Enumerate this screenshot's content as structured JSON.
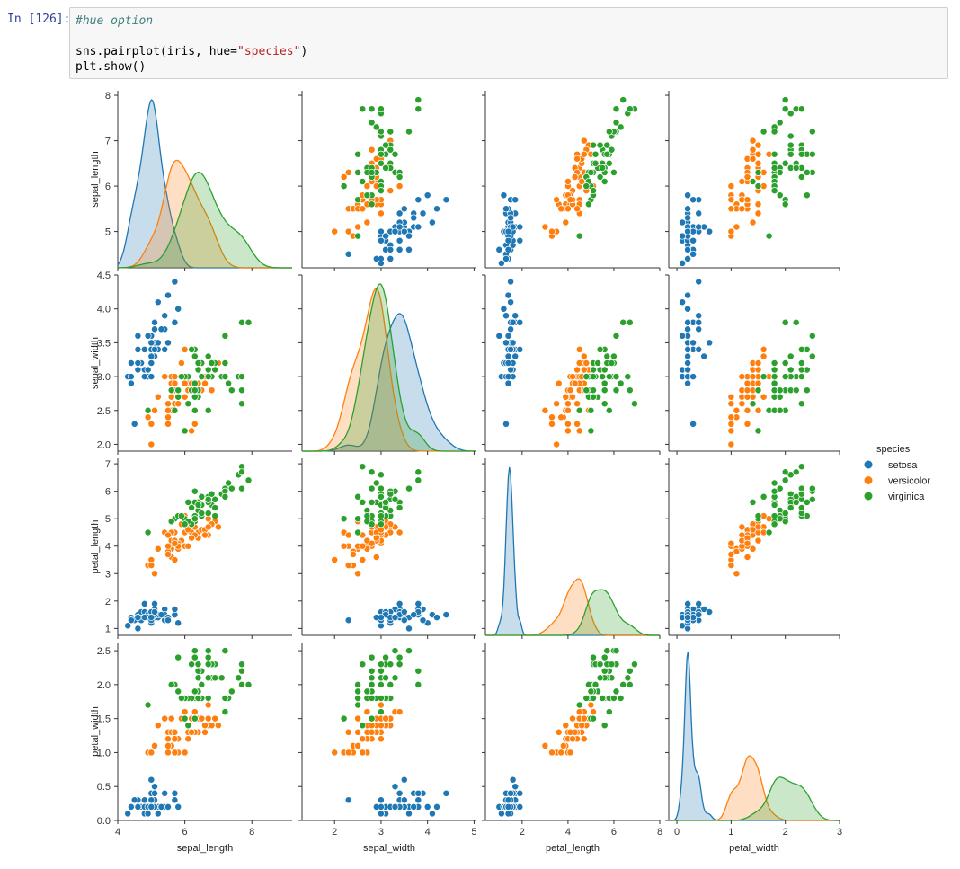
{
  "notebook": {
    "prompt": "In [126]:",
    "code_lines": [
      {
        "parts": [
          {
            "t": "#hue option",
            "c": "cm"
          }
        ]
      },
      {
        "parts": [
          {
            "t": "",
            "c": ""
          }
        ]
      },
      {
        "parts": [
          {
            "t": "sns.pairplot(iris, hue=",
            "c": ""
          },
          {
            "t": "\"species\"",
            "c": "str"
          },
          {
            "t": ")",
            "c": ""
          }
        ]
      },
      {
        "parts": [
          {
            "t": "plt.show()",
            "c": ""
          }
        ]
      }
    ]
  },
  "chart_data": {
    "type": "pairplot",
    "variables": [
      "sepal_length",
      "sepal_width",
      "petal_length",
      "petal_width"
    ],
    "species": [
      "setosa",
      "versicolor",
      "virginica"
    ],
    "colors": {
      "setosa": "#1f77b4",
      "versicolor": "#ff7f0e",
      "virginica": "#2ca02c"
    },
    "legend": {
      "title": "species",
      "entries": [
        "setosa",
        "versicolor",
        "virginica"
      ],
      "placement": "right"
    },
    "axes": {
      "sepal_length": {
        "range": [
          4.0,
          9.2
        ],
        "ticks": [
          4,
          6,
          8
        ],
        "rows_ticks": [
          5,
          6,
          7,
          8
        ],
        "rows_range": [
          4.2,
          8.1
        ]
      },
      "sepal_width": {
        "range": [
          1.3,
          5.05
        ],
        "ticks": [
          2,
          3,
          4,
          5
        ],
        "rows_ticks": [
          "2.0",
          "2.5",
          "3.0",
          "3.5",
          "4.0",
          "4.5"
        ],
        "rows_range": [
          1.9,
          4.5
        ]
      },
      "petal_length": {
        "range": [
          0.4,
          8.0
        ],
        "ticks": [
          2,
          4,
          6,
          8
        ],
        "rows_ticks": [
          1,
          2,
          3,
          4,
          5,
          6,
          7
        ],
        "rows_range": [
          0.75,
          7.2
        ]
      },
      "petal_width": {
        "range": [
          -0.15,
          3.0
        ],
        "ticks": [
          0,
          1,
          2,
          3
        ],
        "rows_ticks": [
          "0.0",
          "0.5",
          "1.0",
          "1.5",
          "2.0",
          "2.5"
        ],
        "rows_range": [
          0.0,
          2.62
        ]
      }
    },
    "data": {
      "setosa": [
        [
          5.1,
          3.5,
          1.4,
          0.2
        ],
        [
          4.9,
          3.0,
          1.4,
          0.2
        ],
        [
          4.7,
          3.2,
          1.3,
          0.2
        ],
        [
          4.6,
          3.1,
          1.5,
          0.2
        ],
        [
          5.0,
          3.6,
          1.4,
          0.2
        ],
        [
          5.4,
          3.9,
          1.7,
          0.4
        ],
        [
          4.6,
          3.4,
          1.4,
          0.3
        ],
        [
          5.0,
          3.4,
          1.5,
          0.2
        ],
        [
          4.4,
          2.9,
          1.4,
          0.2
        ],
        [
          4.9,
          3.1,
          1.5,
          0.1
        ],
        [
          5.4,
          3.7,
          1.5,
          0.2
        ],
        [
          4.8,
          3.4,
          1.6,
          0.2
        ],
        [
          4.8,
          3.0,
          1.4,
          0.1
        ],
        [
          4.3,
          3.0,
          1.1,
          0.1
        ],
        [
          5.8,
          4.0,
          1.2,
          0.2
        ],
        [
          5.7,
          4.4,
          1.5,
          0.4
        ],
        [
          5.4,
          3.9,
          1.3,
          0.4
        ],
        [
          5.1,
          3.5,
          1.4,
          0.3
        ],
        [
          5.7,
          3.8,
          1.7,
          0.3
        ],
        [
          5.1,
          3.8,
          1.5,
          0.3
        ],
        [
          5.4,
          3.4,
          1.7,
          0.2
        ],
        [
          5.1,
          3.7,
          1.5,
          0.4
        ],
        [
          4.6,
          3.6,
          1.0,
          0.2
        ],
        [
          5.1,
          3.3,
          1.7,
          0.5
        ],
        [
          4.8,
          3.4,
          1.9,
          0.2
        ],
        [
          5.0,
          3.0,
          1.6,
          0.2
        ],
        [
          5.0,
          3.4,
          1.6,
          0.4
        ],
        [
          5.2,
          3.5,
          1.5,
          0.2
        ],
        [
          5.2,
          3.4,
          1.4,
          0.2
        ],
        [
          4.7,
          3.2,
          1.6,
          0.2
        ],
        [
          4.8,
          3.1,
          1.6,
          0.2
        ],
        [
          5.4,
          3.4,
          1.5,
          0.4
        ],
        [
          5.2,
          4.1,
          1.5,
          0.1
        ],
        [
          5.5,
          4.2,
          1.4,
          0.2
        ],
        [
          4.9,
          3.1,
          1.5,
          0.2
        ],
        [
          5.0,
          3.2,
          1.2,
          0.2
        ],
        [
          5.5,
          3.5,
          1.3,
          0.2
        ],
        [
          4.9,
          3.6,
          1.4,
          0.1
        ],
        [
          4.4,
          3.0,
          1.3,
          0.2
        ],
        [
          5.1,
          3.4,
          1.5,
          0.2
        ],
        [
          5.0,
          3.5,
          1.3,
          0.3
        ],
        [
          4.5,
          2.3,
          1.3,
          0.3
        ],
        [
          4.4,
          3.2,
          1.3,
          0.2
        ],
        [
          5.0,
          3.5,
          1.6,
          0.6
        ],
        [
          5.1,
          3.8,
          1.9,
          0.4
        ],
        [
          4.8,
          3.0,
          1.4,
          0.3
        ],
        [
          5.1,
          3.8,
          1.6,
          0.2
        ],
        [
          4.6,
          3.2,
          1.4,
          0.2
        ],
        [
          5.3,
          3.7,
          1.5,
          0.2
        ],
        [
          5.0,
          3.3,
          1.4,
          0.2
        ]
      ],
      "versicolor": [
        [
          7.0,
          3.2,
          4.7,
          1.4
        ],
        [
          6.4,
          3.2,
          4.5,
          1.5
        ],
        [
          6.9,
          3.1,
          4.9,
          1.5
        ],
        [
          5.5,
          2.3,
          4.0,
          1.3
        ],
        [
          6.5,
          2.8,
          4.6,
          1.5
        ],
        [
          5.7,
          2.8,
          4.5,
          1.3
        ],
        [
          6.3,
          3.3,
          4.7,
          1.6
        ],
        [
          4.9,
          2.4,
          3.3,
          1.0
        ],
        [
          6.6,
          2.9,
          4.6,
          1.3
        ],
        [
          5.2,
          2.7,
          3.9,
          1.4
        ],
        [
          5.0,
          2.0,
          3.5,
          1.0
        ],
        [
          5.9,
          3.0,
          4.2,
          1.5
        ],
        [
          6.0,
          2.2,
          4.0,
          1.0
        ],
        [
          6.1,
          2.9,
          4.7,
          1.4
        ],
        [
          5.6,
          2.9,
          3.6,
          1.3
        ],
        [
          6.7,
          3.1,
          4.4,
          1.4
        ],
        [
          5.6,
          3.0,
          4.5,
          1.5
        ],
        [
          5.8,
          2.7,
          4.1,
          1.0
        ],
        [
          6.2,
          2.2,
          4.5,
          1.5
        ],
        [
          5.6,
          2.5,
          3.9,
          1.1
        ],
        [
          5.9,
          3.2,
          4.8,
          1.8
        ],
        [
          6.1,
          2.8,
          4.0,
          1.3
        ],
        [
          6.3,
          2.5,
          4.9,
          1.5
        ],
        [
          6.1,
          2.8,
          4.7,
          1.2
        ],
        [
          6.4,
          2.9,
          4.3,
          1.3
        ],
        [
          6.6,
          3.0,
          4.4,
          1.4
        ],
        [
          6.8,
          2.8,
          4.8,
          1.4
        ],
        [
          6.7,
          3.0,
          5.0,
          1.7
        ],
        [
          6.0,
          2.9,
          4.5,
          1.5
        ],
        [
          5.7,
          2.6,
          3.5,
          1.0
        ],
        [
          5.5,
          2.4,
          3.8,
          1.1
        ],
        [
          5.5,
          2.4,
          3.7,
          1.0
        ],
        [
          5.8,
          2.7,
          3.9,
          1.2
        ],
        [
          6.0,
          2.7,
          5.1,
          1.6
        ],
        [
          5.4,
          3.0,
          4.5,
          1.5
        ],
        [
          6.0,
          3.4,
          4.5,
          1.6
        ],
        [
          6.7,
          3.1,
          4.7,
          1.5
        ],
        [
          6.3,
          2.3,
          4.4,
          1.3
        ],
        [
          5.6,
          3.0,
          4.1,
          1.3
        ],
        [
          5.5,
          2.5,
          4.0,
          1.3
        ],
        [
          5.5,
          2.6,
          4.4,
          1.2
        ],
        [
          6.1,
          3.0,
          4.6,
          1.4
        ],
        [
          5.8,
          2.6,
          4.0,
          1.2
        ],
        [
          5.0,
          2.3,
          3.3,
          1.0
        ],
        [
          5.6,
          2.7,
          4.2,
          1.3
        ],
        [
          5.7,
          3.0,
          4.2,
          1.2
        ],
        [
          5.7,
          2.9,
          4.2,
          1.3
        ],
        [
          6.2,
          2.9,
          4.3,
          1.3
        ],
        [
          5.1,
          2.5,
          3.0,
          1.1
        ],
        [
          5.7,
          2.8,
          4.1,
          1.3
        ]
      ],
      "virginica": [
        [
          6.3,
          3.3,
          6.0,
          2.5
        ],
        [
          5.8,
          2.7,
          5.1,
          1.9
        ],
        [
          7.1,
          3.0,
          5.9,
          2.1
        ],
        [
          6.3,
          2.9,
          5.6,
          1.8
        ],
        [
          6.5,
          3.0,
          5.8,
          2.2
        ],
        [
          7.6,
          3.0,
          6.6,
          2.1
        ],
        [
          4.9,
          2.5,
          4.5,
          1.7
        ],
        [
          7.3,
          2.9,
          6.3,
          1.8
        ],
        [
          6.7,
          2.5,
          5.8,
          1.8
        ],
        [
          7.2,
          3.6,
          6.1,
          2.5
        ],
        [
          6.5,
          3.2,
          5.1,
          2.0
        ],
        [
          6.4,
          2.7,
          5.3,
          1.9
        ],
        [
          6.8,
          3.0,
          5.5,
          2.1
        ],
        [
          5.7,
          2.5,
          5.0,
          2.0
        ],
        [
          5.8,
          2.8,
          5.1,
          2.4
        ],
        [
          6.4,
          3.2,
          5.3,
          2.3
        ],
        [
          6.5,
          3.0,
          5.5,
          1.8
        ],
        [
          7.7,
          3.8,
          6.7,
          2.2
        ],
        [
          7.7,
          2.6,
          6.9,
          2.3
        ],
        [
          6.0,
          2.2,
          5.0,
          1.5
        ],
        [
          6.9,
          3.2,
          5.7,
          2.3
        ],
        [
          5.6,
          2.8,
          4.9,
          2.0
        ],
        [
          7.7,
          2.8,
          6.7,
          2.0
        ],
        [
          6.3,
          2.7,
          4.9,
          1.8
        ],
        [
          6.7,
          3.3,
          5.7,
          2.1
        ],
        [
          7.2,
          3.2,
          6.0,
          1.8
        ],
        [
          6.2,
          2.8,
          4.8,
          1.8
        ],
        [
          6.1,
          3.0,
          4.9,
          1.8
        ],
        [
          6.4,
          2.8,
          5.6,
          2.1
        ],
        [
          7.2,
          3.0,
          5.8,
          1.6
        ],
        [
          7.4,
          2.8,
          6.1,
          1.9
        ],
        [
          7.9,
          3.8,
          6.4,
          2.0
        ],
        [
          6.4,
          2.8,
          5.6,
          2.2
        ],
        [
          6.3,
          2.8,
          5.1,
          1.5
        ],
        [
          6.1,
          2.6,
          5.6,
          1.4
        ],
        [
          7.7,
          3.0,
          6.1,
          2.3
        ],
        [
          6.3,
          3.4,
          5.6,
          2.4
        ],
        [
          6.4,
          3.1,
          5.5,
          1.8
        ],
        [
          6.0,
          3.0,
          4.8,
          1.8
        ],
        [
          6.9,
          3.1,
          5.4,
          2.1
        ],
        [
          6.7,
          3.1,
          5.6,
          2.4
        ],
        [
          6.9,
          3.1,
          5.1,
          2.3
        ],
        [
          5.8,
          2.7,
          5.1,
          1.9
        ],
        [
          6.8,
          3.2,
          5.9,
          2.3
        ],
        [
          6.7,
          3.3,
          5.7,
          2.5
        ],
        [
          6.7,
          3.0,
          5.2,
          2.3
        ],
        [
          6.3,
          2.5,
          5.0,
          1.9
        ],
        [
          6.5,
          3.0,
          5.2,
          2.0
        ],
        [
          6.2,
          3.4,
          5.4,
          2.3
        ],
        [
          5.9,
          3.0,
          5.1,
          1.8
        ]
      ]
    }
  }
}
